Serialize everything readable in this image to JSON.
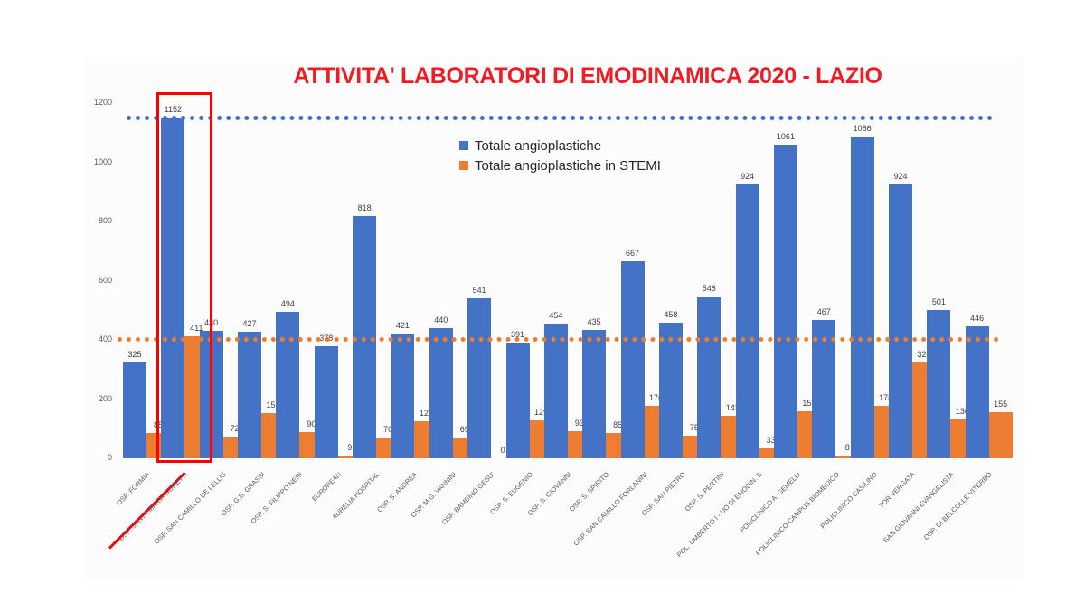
{
  "chart_data": {
    "type": "bar",
    "title": "ATTIVITA' LABORATORI DI EMODINAMICA 2020 - LAZIO",
    "xlabel": "",
    "ylabel": "",
    "ylim": [
      0,
      1200
    ],
    "yticks": [
      0,
      200,
      400,
      600,
      800,
      1000,
      1200
    ],
    "grid": false,
    "legend_position": "top-center (inside plot)",
    "categories": [
      "OSP. FORMIA",
      "OSP. SANTA MARIA GORETTI",
      "OSP. SAN CAMILLO DE LELLIS",
      "OSP. G.B. GRASSI",
      "OSP. S. FILIPPO NERI",
      "EUROPEAN",
      "AURELIA HOSPITAL",
      "OSP. S. ANDREA",
      "OSP. M.G. VANNINI",
      "OSP. BAMBINO GESU'",
      "OSP. S. EUGENIO",
      "OSP. S. GIOVANNI",
      "OSP. S. SPIRITO",
      "OSP. SAN CAMILLO FORLANINI",
      "OSP. SAN PIETRO",
      "OSP. S. PERTINI",
      "POL. UMBERTO I - UO di EMODIN. B",
      "POLICLINICO A. GEMELLI",
      "POLICLINICO CAMPUS BIOMEDICO",
      "POLICLINICO CASILINO",
      "TOR VERGATA",
      "SAN GIOVANNI EVANGELISTA",
      "OSP. DI BELCOLLE VITERBO"
    ],
    "series": [
      {
        "name": "Totale angioplastiche",
        "color": "#4472c4",
        "values": [
          325,
          1152,
          430,
          427,
          494,
          378,
          818,
          421,
          440,
          541,
          391,
          454,
          435,
          667,
          458,
          548,
          924,
          1061,
          467,
          1086,
          924,
          501,
          446
        ]
      },
      {
        "name": "Totale angioplastiche in STEMI",
        "color": "#ed7d31",
        "values": [
          85,
          411,
          72,
          152,
          90,
          9,
          70,
          125,
          69,
          0,
          129,
          93,
          85,
          176,
          75,
          142,
          33,
          159,
          8,
          178,
          324,
          130,
          155
        ]
      }
    ],
    "reference_lines": [
      {
        "series": "Totale angioplastiche",
        "value": 1152,
        "style": "dotted",
        "color": "#4472c4"
      },
      {
        "series": "Totale angioplastiche in STEMI",
        "value": 404,
        "style": "dotted",
        "color": "#ed7d31"
      }
    ],
    "annotations": [
      {
        "type": "box",
        "target": "OSP. SANTA MARIA GORETTI",
        "color": "#ff0000"
      },
      {
        "type": "underline",
        "target": "OSP. SANTA MARIA GORETTI",
        "color": "#ff0000"
      }
    ]
  },
  "title": "ATTIVITA' LABORATORI DI EMODINAMICA 2020 - LAZIO",
  "legend": {
    "items": [
      {
        "label": "Totale angioplastiche",
        "color": "#4472c4"
      },
      {
        "label": "Totale angioplastiche in STEMI",
        "color": "#ed7d31"
      }
    ]
  },
  "colors": {
    "title": "#ee1c24",
    "blue": "#4472c4",
    "orange": "#ed7d31",
    "highlight": "#ff0000"
  }
}
